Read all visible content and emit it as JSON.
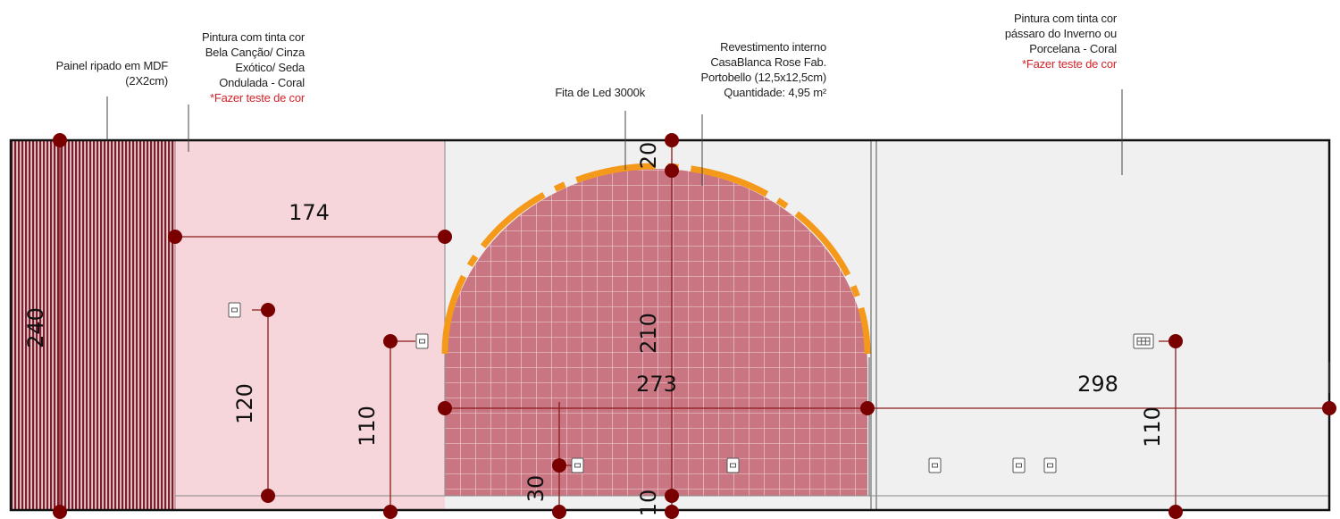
{
  "annotations": {
    "painel": [
      "Painel ripado em MDF",
      "(2X2cm)"
    ],
    "pintura_left": [
      "Pintura com tinta cor",
      "Bela Canção/ Cinza",
      "Exótico/ Seda",
      "Ondulada - Coral"
    ],
    "pintura_left_note": "*Fazer teste de cor",
    "fita": "Fita de Led 3000k",
    "revestimento": [
      "Revestimento interno",
      "CasaBlanca Rose  Fab.",
      "Portobello (12,5x12,5cm)",
      "Quantidade:  4,95 m²"
    ],
    "pintura_right": [
      "Pintura com tinta cor",
      "pássaro do Inverno ou",
      "Porcelana - Coral"
    ],
    "pintura_right_note": "*Fazer teste de cor"
  },
  "dimensions": {
    "wall_height": "240",
    "left_panel_width": "174",
    "outlet_left_height": "120",
    "switch_height": "110",
    "arch_top_gap": "20",
    "arch_height": "210",
    "niche_width": "273",
    "lower_outlet_height": "30",
    "floor_gap": "10",
    "right_width": "298",
    "right_switch_height": "110"
  },
  "colors": {
    "wall_outline": "#111111",
    "slat": "#7a1f2b",
    "pink_paint": "#f6d6da",
    "grey_paint": "#f0f0f0",
    "tile": "#c97682",
    "led": "#f4991a",
    "dim_line": "#8b0000",
    "dot": "#7a0000",
    "note_red": "#d2232a"
  }
}
